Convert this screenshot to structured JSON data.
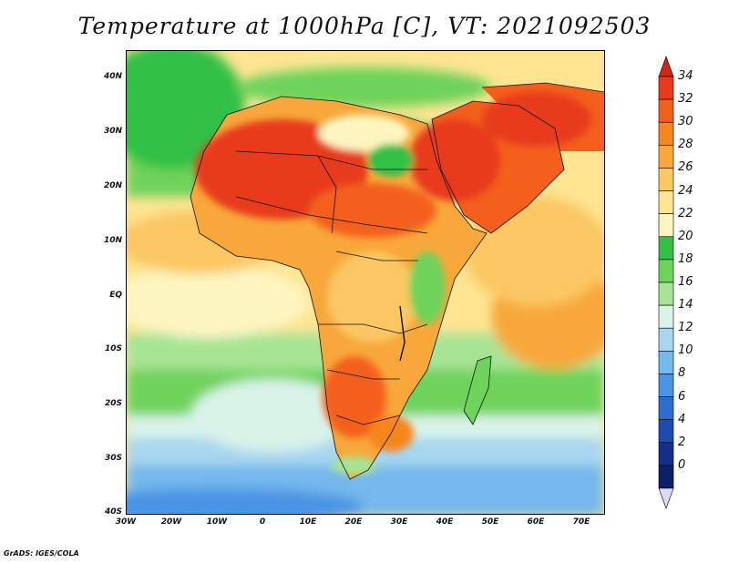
{
  "title": "Temperature at 1000hPa [C], VT: 2021092503",
  "footer": "GrADS: IGES/COLA",
  "map": {
    "region": "Africa",
    "lon_range": [
      -30,
      75
    ],
    "lat_range": [
      -40,
      45
    ],
    "projection": "lat-lon",
    "lat_tick_labels": [
      "40N",
      "30N",
      "20N",
      "10N",
      "EQ",
      "10S",
      "20S",
      "30S",
      "40S"
    ],
    "lon_tick_labels": [
      "30W",
      "20W",
      "10W",
      "0",
      "10E",
      "20E",
      "30E",
      "40E",
      "50E",
      "60E",
      "70E"
    ]
  },
  "colorbar": {
    "levels": [
      "34",
      "32",
      "30",
      "28",
      "26",
      "24",
      "22",
      "20",
      "18",
      "16",
      "14",
      "12",
      "10",
      "8",
      "6",
      "4",
      "2",
      "0"
    ],
    "colors": [
      "#e83a1a",
      "#f4601c",
      "#f6861e",
      "#f8a83a",
      "#fbc763",
      "#fde592",
      "#fdf5c0",
      "#32c046",
      "#6ed35a",
      "#a6e494",
      "#d9f3e9",
      "#a8d6f1",
      "#74b8ec",
      "#4a94e4",
      "#2d6dd0",
      "#1f4bb1",
      "#132f8a",
      "#0c1f68"
    ],
    "top_color": "#d42514",
    "bottom_color": "#dcdcfa"
  }
}
